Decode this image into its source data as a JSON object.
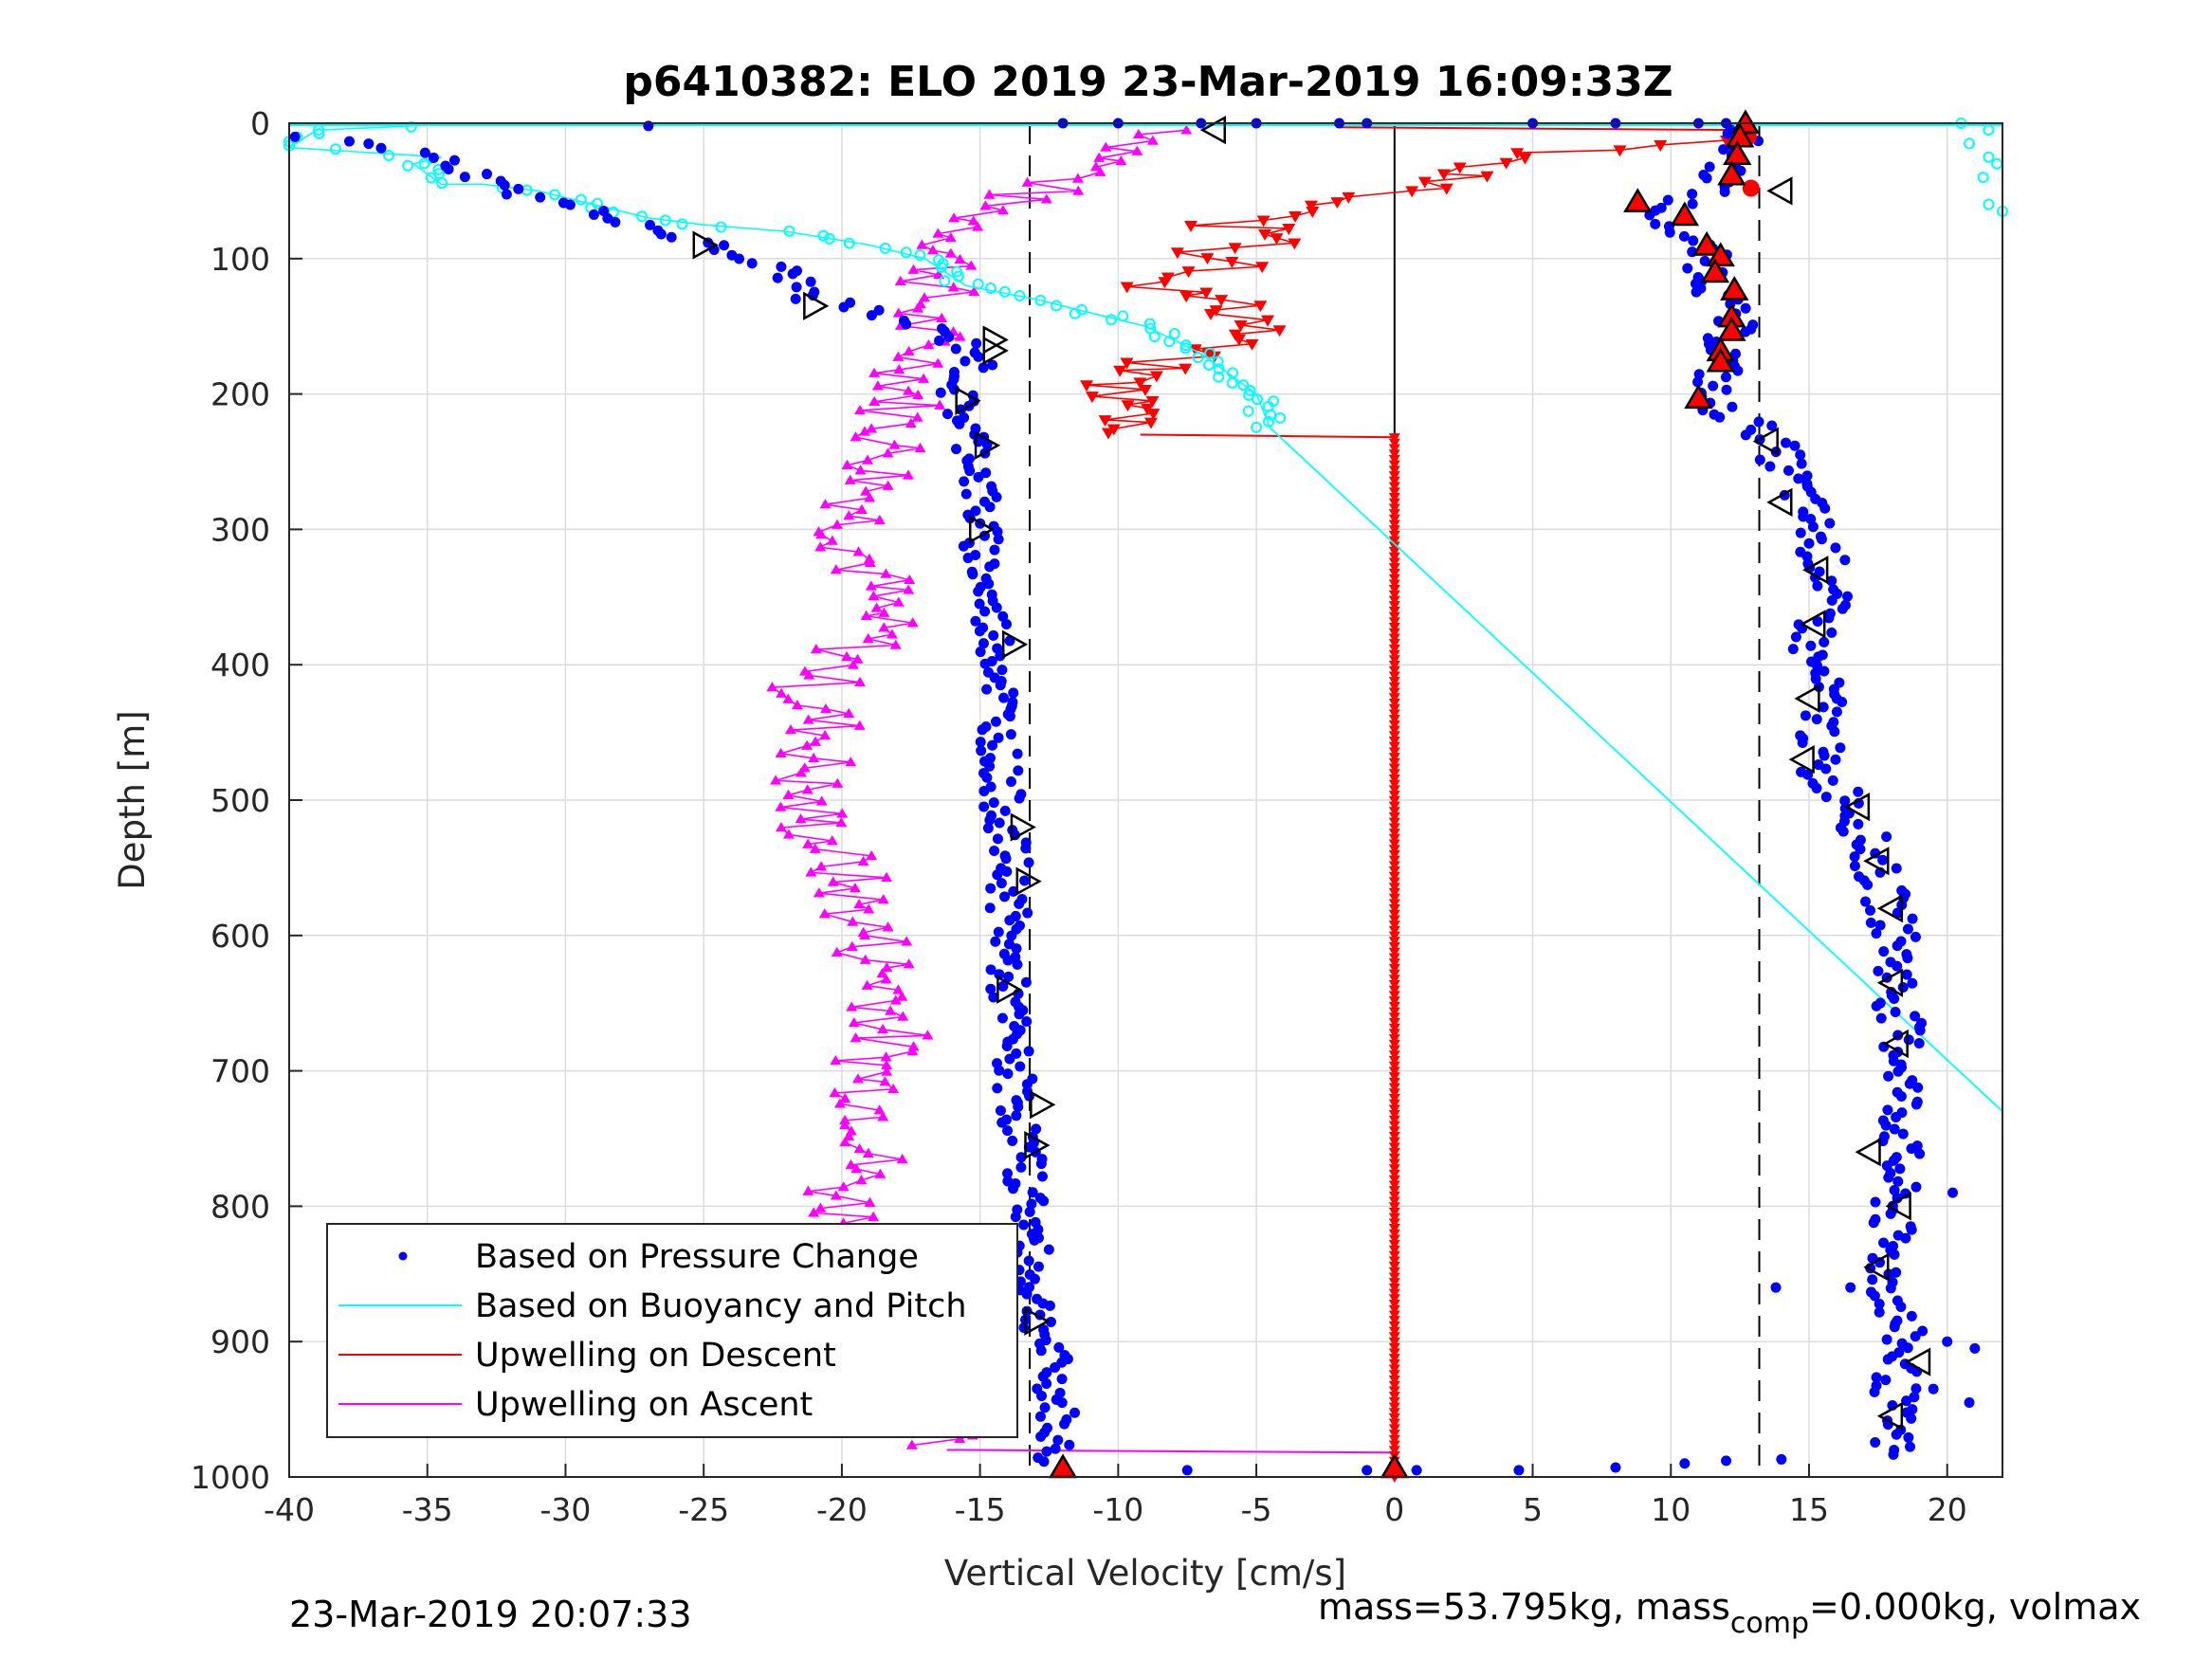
{
  "chart_data": {
    "type": "scatter",
    "title": "p6410382: ELO 2019 23-Mar-2019 16:09:33Z",
    "xlabel": "Vertical Velocity [cm/s]",
    "ylabel": "Depth [m]",
    "xlim": [
      -40,
      22
    ],
    "ylim": [
      0,
      1000
    ],
    "y_reversed": true,
    "grid": true,
    "x_ticks": [
      "-40",
      "-35",
      "-30",
      "-25",
      "-20",
      "-15",
      "-10",
      "-5",
      "0",
      "5",
      "10",
      "15",
      "20"
    ],
    "y_ticks": [
      "0",
      "100",
      "200",
      "300",
      "400",
      "500",
      "600",
      "700",
      "800",
      "900",
      "1000"
    ],
    "legend_placement": "bottom-left",
    "legend": [
      "Based on Pressure Change",
      "Based on Buoyancy and Pitch",
      "Upwelling on Descent",
      "Upwelling on Ascent"
    ],
    "colors": {
      "pressure": "#0000ff",
      "buoyancy": "#00ffff",
      "descent": "#ff0000",
      "ascent": "#ff00ff"
    },
    "reference_lines": {
      "dashed_x": [
        -13.2,
        13.2
      ],
      "solid_x": 0
    },
    "series": [
      {
        "name": "Based on Pressure Change",
        "marker": "dot",
        "descent_profile": [
          [
            12.6,
            5
          ],
          [
            12.2,
            25
          ],
          [
            11.8,
            45
          ],
          [
            9.5,
            65
          ],
          [
            11.2,
            95
          ],
          [
            11.6,
            120
          ],
          [
            12.2,
            150
          ],
          [
            11.8,
            180
          ],
          [
            11.2,
            205
          ],
          [
            13.5,
            230
          ],
          [
            14.6,
            270
          ],
          [
            15.2,
            300
          ],
          [
            15.8,
            340
          ],
          [
            15.0,
            390
          ],
          [
            15.6,
            430
          ],
          [
            15.2,
            480
          ],
          [
            16.6,
            500
          ],
          [
            17.4,
            550
          ],
          [
            18.2,
            600
          ],
          [
            18.2,
            650
          ],
          [
            18.5,
            700
          ],
          [
            18.3,
            750
          ],
          [
            18.0,
            800
          ],
          [
            17.8,
            850
          ],
          [
            18.4,
            900
          ],
          [
            18.0,
            950
          ],
          [
            18.0,
            985
          ]
        ],
        "ascent_profile": [
          [
            -12.4,
            990
          ],
          [
            -12.2,
            950
          ],
          [
            -12.6,
            900
          ],
          [
            -13.2,
            850
          ],
          [
            -13.2,
            800
          ],
          [
            -13.5,
            750
          ],
          [
            -13.8,
            700
          ],
          [
            -14.0,
            650
          ],
          [
            -14.0,
            600
          ],
          [
            -13.9,
            550
          ],
          [
            -14.2,
            500
          ],
          [
            -14.3,
            450
          ],
          [
            -14.2,
            400
          ],
          [
            -14.8,
            350
          ],
          [
            -15.0,
            300
          ],
          [
            -15.0,
            250
          ],
          [
            -15.9,
            200
          ],
          [
            -14.9,
            170
          ],
          [
            -17.0,
            150
          ],
          [
            -21.0,
            130
          ],
          [
            -22.0,
            110
          ],
          [
            -25.0,
            90
          ],
          [
            -28.0,
            70
          ],
          [
            -32.0,
            50
          ],
          [
            -34.0,
            30
          ],
          [
            -37.0,
            15
          ],
          [
            -40.0,
            10
          ]
        ],
        "surface_points": [
          [
            -12.0,
            0
          ],
          [
            -10.0,
            0
          ],
          [
            -7.0,
            0
          ],
          [
            -5.0,
            0
          ],
          [
            -2.0,
            0
          ],
          [
            -1.0,
            0
          ],
          [
            5.0,
            0
          ],
          [
            8.0,
            0
          ],
          [
            11.0,
            0
          ],
          [
            12.0,
            0
          ],
          [
            -27.0,
            2
          ]
        ],
        "bottom_points": [
          [
            -7.5,
            995
          ],
          [
            -1.0,
            995
          ],
          [
            0.8,
            995
          ],
          [
            4.5,
            995
          ],
          [
            8.0,
            993
          ],
          [
            10.5,
            990
          ],
          [
            12.0,
            988
          ],
          [
            14.0,
            987
          ]
        ],
        "outliers": [
          [
            21.0,
            905
          ],
          [
            20.0,
            900
          ],
          [
            19.5,
            935
          ],
          [
            20.8,
            945
          ],
          [
            20.2,
            790
          ],
          [
            16.5,
            860
          ],
          [
            13.8,
            860
          ]
        ]
      },
      {
        "name": "Based on Buoyancy and Pitch",
        "marker": "circle",
        "points": [
          [
            -35.5,
            2
          ],
          [
            -39.0,
            5
          ],
          [
            -40.0,
            18
          ],
          [
            -34.5,
            25
          ],
          [
            -35.5,
            30
          ],
          [
            -34.5,
            45
          ],
          [
            -33.0,
            45
          ],
          [
            -31.0,
            50
          ],
          [
            -29.0,
            60
          ],
          [
            -27.0,
            70
          ],
          [
            -25.0,
            75
          ],
          [
            -22.0,
            80
          ],
          [
            -19.0,
            90
          ],
          [
            -17.0,
            100
          ],
          [
            -15.5,
            120
          ],
          [
            -13.0,
            130
          ],
          [
            -11.0,
            140
          ],
          [
            -9.0,
            150
          ],
          [
            -7.0,
            170
          ],
          [
            -5.0,
            200
          ],
          [
            -4.5,
            225
          ]
        ],
        "line": [
          [
            -4.5,
            225
          ],
          [
            22.0,
            730
          ]
        ],
        "far_right_points": [
          [
            20.5,
            0
          ],
          [
            21.5,
            5
          ],
          [
            20.8,
            15
          ],
          [
            21.5,
            25
          ],
          [
            21.8,
            30
          ],
          [
            21.3,
            40
          ],
          [
            21.5,
            60
          ],
          [
            22.0,
            65
          ]
        ],
        "surface_segment": [
          [
            -40.0,
            0
          ],
          [
            22.0,
            0
          ]
        ]
      },
      {
        "name": "Upwelling on Descent",
        "marker": "triangle-down",
        "points": [
          [
            12.8,
            5
          ],
          [
            -2.0,
            5
          ],
          [
            12.0,
            12
          ],
          [
            6.0,
            20
          ],
          [
            3.0,
            30
          ],
          [
            1.5,
            45
          ],
          [
            -3.0,
            60
          ],
          [
            -6.0,
            75
          ],
          [
            -3.0,
            90
          ],
          [
            -7.0,
            95
          ],
          [
            -5.0,
            105
          ],
          [
            -8.5,
            120
          ],
          [
            -6.0,
            135
          ],
          [
            -4.5,
            150
          ],
          [
            -6.0,
            160
          ],
          [
            -9.0,
            180
          ],
          [
            -10.0,
            195
          ],
          [
            -9.5,
            210
          ],
          [
            -9.2,
            230
          ],
          [
            0.0,
            232
          ]
        ],
        "bottom_segment": [
          [
            0.0,
            232
          ],
          [
            0.0,
            1000
          ]
        ]
      },
      {
        "name": "Upwelling on Ascent",
        "marker": "triangle-up",
        "points": [
          [
            -16.2,
            980
          ],
          [
            -17.0,
            950
          ],
          [
            -18.0,
            920
          ],
          [
            -19.0,
            880
          ],
          [
            -17.5,
            850
          ],
          [
            -19.5,
            820
          ],
          [
            -20.0,
            790
          ],
          [
            -18.5,
            750
          ],
          [
            -18.8,
            700
          ],
          [
            -18.0,
            650
          ],
          [
            -19.0,
            600
          ],
          [
            -20.0,
            550
          ],
          [
            -21.5,
            500
          ],
          [
            -20.5,
            450
          ],
          [
            -21.2,
            420
          ],
          [
            -19.0,
            380
          ],
          [
            -18.8,
            340
          ],
          [
            -19.5,
            300
          ],
          [
            -18.5,
            260
          ],
          [
            -18.0,
            220
          ],
          [
            -17.5,
            200
          ],
          [
            -17.0,
            170
          ],
          [
            -17.2,
            140
          ],
          [
            -16.5,
            120
          ],
          [
            -15.8,
            90
          ],
          [
            -14.5,
            60
          ],
          [
            -11.5,
            40
          ],
          [
            -9.5,
            20
          ],
          [
            -7.5,
            5
          ],
          [
            -13.2,
            0
          ],
          [
            0.0,
            0
          ]
        ],
        "bottom_segment": [
          [
            -16.2,
            980
          ],
          [
            0.0,
            982
          ]
        ]
      }
    ],
    "overlay_markers": {
      "filled_triangles": [
        [
          12.7,
          2
        ],
        [
          12.5,
          12
        ],
        [
          12.4,
          25
        ],
        [
          12.2,
          40
        ],
        [
          8.8,
          60
        ],
        [
          10.5,
          70
        ],
        [
          11.3,
          92
        ],
        [
          11.8,
          100
        ],
        [
          11.6,
          112
        ],
        [
          12.3,
          125
        ],
        [
          12.2,
          145
        ],
        [
          12.2,
          155
        ],
        [
          11.8,
          170
        ],
        [
          11.8,
          178
        ],
        [
          11.0,
          205
        ],
        [
          -12.0,
          995
        ],
        [
          0.0,
          995
        ]
      ],
      "red_dots": [
        [
          12.8,
          10
        ],
        [
          12.9,
          48
        ]
      ],
      "open_triangles": [
        [
          -6.5,
          5
        ],
        [
          14.0,
          50
        ],
        [
          -25.0,
          90
        ],
        [
          -21.0,
          135
        ],
        [
          -14.5,
          160
        ],
        [
          -14.5,
          168
        ],
        [
          -15.5,
          205
        ],
        [
          -14.8,
          238
        ],
        [
          -15.0,
          300
        ],
        [
          -13.8,
          385
        ],
        [
          14.0,
          280
        ],
        [
          15.3,
          330
        ],
        [
          15.2,
          370
        ],
        [
          15.0,
          425
        ],
        [
          14.8,
          470
        ],
        [
          16.8,
          505
        ],
        [
          17.5,
          545
        ],
        [
          18.0,
          580
        ],
        [
          18.0,
          635
        ],
        [
          18.2,
          680
        ],
        [
          -13.5,
          520
        ],
        [
          -13.3,
          560
        ],
        [
          -14.0,
          640
        ],
        [
          -12.8,
          725
        ],
        [
          -13.0,
          755
        ],
        [
          17.2,
          760
        ],
        [
          18.3,
          800
        ],
        [
          17.5,
          845
        ],
        [
          19.0,
          915
        ],
        [
          18.0,
          955
        ],
        [
          13.5,
          235
        ],
        [
          -13.0,
          885
        ]
      ]
    }
  },
  "footer": {
    "timestamp": "23-Mar-2019 20:07:33",
    "mass_text_a": "mass=53.795kg, mass",
    "mass_sub": "comp",
    "mass_text_b": "=0.000kg, volmax"
  }
}
